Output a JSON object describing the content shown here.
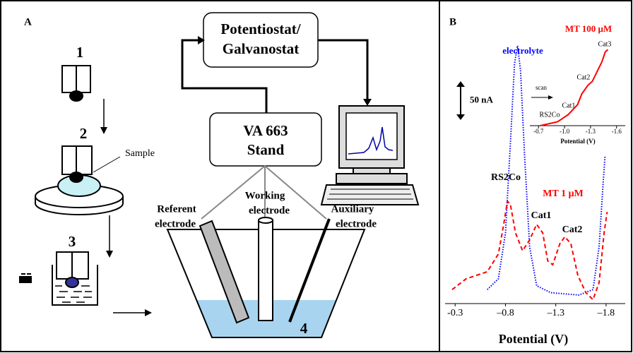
{
  "panel_a": {
    "label": "A",
    "steps": [
      "1",
      "2",
      "3",
      "4"
    ],
    "sample": "Sample",
    "potentiostat": [
      "Potentiostat/",
      "Galvanostat"
    ],
    "stand": [
      "VA 663",
      "Stand"
    ],
    "referent": [
      "Referent",
      "electrode"
    ],
    "working": [
      "Working",
      "electrode"
    ],
    "auxiliary": [
      "Auxiliary",
      "electrode"
    ]
  },
  "chart_data": {
    "type": "line",
    "panel_label": "B",
    "x_label": "Potential (V)",
    "xlim": [
      -0.2,
      -1.99
    ],
    "ylim": [
      0,
      380
    ],
    "xticks": [
      {
        "value": -0.3,
        "label": "-0.3"
      },
      {
        "value": -0.8,
        "label": "–0.8"
      },
      {
        "value": -1.3,
        "label": "–1.3"
      },
      {
        "value": -1.8,
        "label": "–1.8"
      }
    ],
    "scale_bar": {
      "value": 50,
      "label": "50 nA"
    },
    "annotations": [
      "RS2Co",
      "Cat1",
      "Cat2"
    ],
    "series": [
      {
        "name": "electrolyte",
        "color": "#0000ff",
        "style": "dotted",
        "x": [
          -0.62,
          -0.73,
          -0.8,
          -0.85,
          -0.89,
          -0.92,
          -0.95,
          -0.99,
          -1.04,
          -1.11,
          -1.25,
          -1.53,
          -1.67,
          -1.73,
          -1.77,
          -1.79
        ],
        "values": [
          18,
          32,
          91,
          209,
          309,
          332,
          300,
          191,
          73,
          23,
          14,
          11,
          18,
          73,
          155,
          191
        ]
      },
      {
        "name": "MT 1 μM",
        "color": "#ff0000",
        "style": "dashed",
        "x": [
          -0.27,
          -0.41,
          -0.62,
          -0.73,
          -0.78,
          -0.82,
          -0.85,
          -0.9,
          -0.97,
          -1.04,
          -1.11,
          -1.17,
          -1.22,
          -1.27,
          -1.34,
          -1.39,
          -1.45,
          -1.52,
          -1.6,
          -1.67,
          -1.73,
          -1.78,
          -1.81
        ],
        "values": [
          18,
          32,
          41,
          64,
          100,
          132,
          127,
          91,
          68,
          82,
          102,
          91,
          55,
          50,
          77,
          86,
          77,
          36,
          14,
          5,
          27,
          91,
          118
        ]
      }
    ],
    "inset": {
      "x_label": "Potential (V)",
      "xlim": [
        -0.6,
        -1.7
      ],
      "ylim": [
        0,
        120
      ],
      "xticks": [
        {
          "value": -0.7,
          "label": "-0.7"
        },
        {
          "value": -1.0,
          "label": "-1.0"
        },
        {
          "value": -1.3,
          "label": "-1.3"
        },
        {
          "value": -1.6,
          "label": "-1.6"
        }
      ],
      "annotations": [
        "scan",
        "RS2Co",
        "Cat1",
        "Cat2",
        "Cat3"
      ],
      "series": [
        {
          "name": "MT 100 μM",
          "color": "#ff0000",
          "style": "solid",
          "x": [
            -0.72,
            -0.92,
            -1.04,
            -1.15,
            -1.2,
            -1.27,
            -1.32,
            -1.39,
            -1.43,
            -1.47,
            -1.5
          ],
          "values": [
            0,
            5,
            14,
            27,
            41,
            52,
            57,
            73,
            82,
            95,
            98
          ]
        }
      ]
    }
  }
}
